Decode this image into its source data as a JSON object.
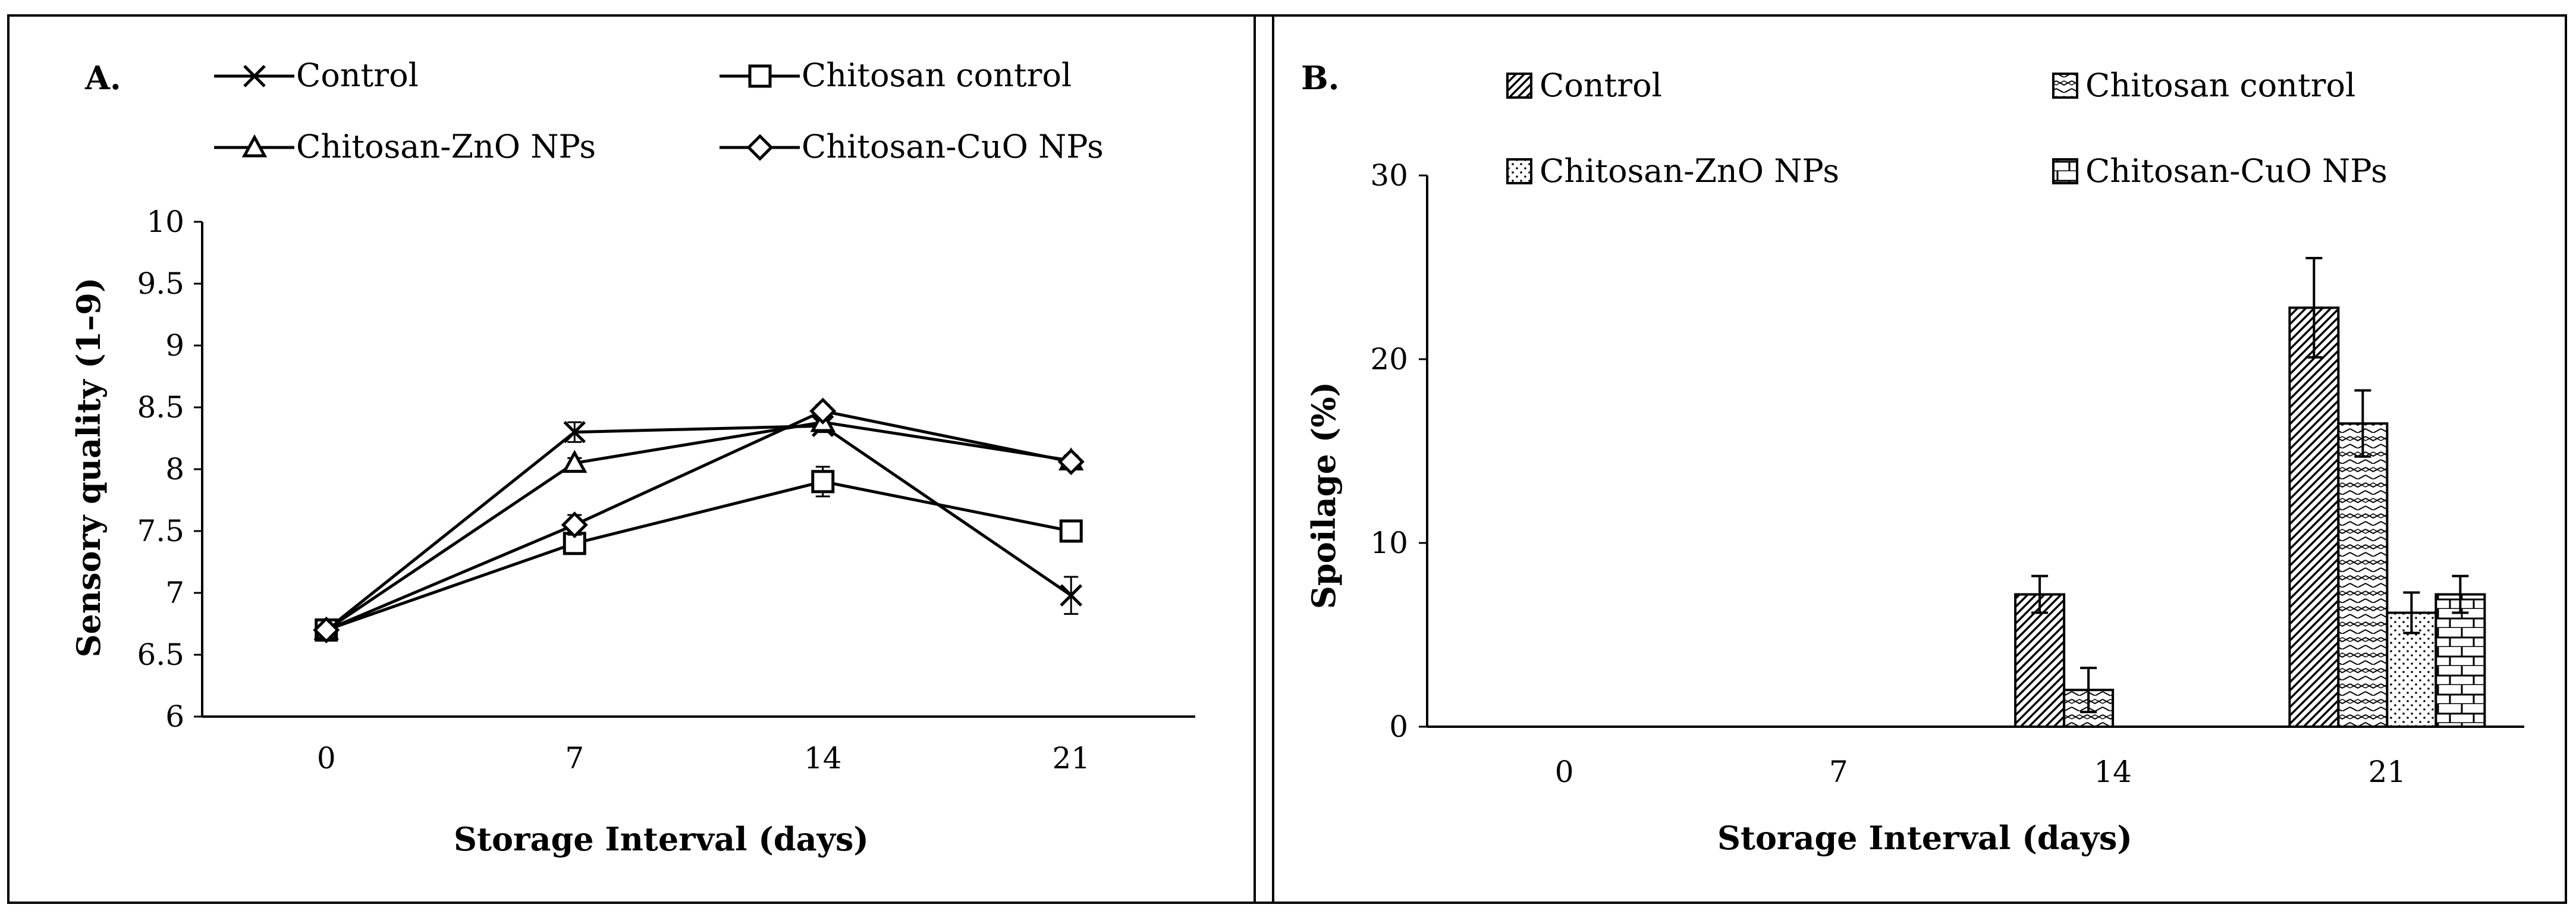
{
  "chart_data": [
    {
      "panel_label": "A.",
      "type": "line",
      "title": "",
      "xlabel": "Storage Interval (days)",
      "ylabel": "Sensory quality (1–9)",
      "categories": [
        "0",
        "7",
        "14",
        "21"
      ],
      "ylim": [
        6,
        10
      ],
      "yticks": [
        "6",
        "6.5",
        "7",
        "7.5",
        "8",
        "8.5",
        "9",
        "9.5",
        "10"
      ],
      "grid": false,
      "legend_position": "top",
      "series": [
        {
          "name": "Control",
          "marker": "x",
          "values": [
            6.7,
            8.3,
            8.35,
            6.98
          ],
          "errors": [
            0.03,
            0.08,
            0.05,
            0.15
          ]
        },
        {
          "name": "Chitosan control",
          "marker": "square",
          "values": [
            6.7,
            7.4,
            7.9,
            7.5
          ],
          "errors": [
            0.03,
            0.08,
            0.12,
            0.06
          ]
        },
        {
          "name": "Chitosan-ZnO NPs",
          "marker": "triangle",
          "values": [
            6.7,
            8.05,
            8.38,
            8.07
          ],
          "errors": [
            0.03,
            0.04,
            0.04,
            0.04
          ]
        },
        {
          "name": "Chitosan-CuO NPs",
          "marker": "diamond",
          "values": [
            6.7,
            7.55,
            8.47,
            8.06
          ],
          "errors": [
            0.03,
            0.08,
            0.05,
            0.05
          ]
        }
      ]
    },
    {
      "panel_label": "B.",
      "type": "bar",
      "title": "",
      "xlabel": "Storage Interval (days)",
      "ylabel": "Spoilage (%)",
      "categories": [
        "0",
        "7",
        "14",
        "21"
      ],
      "ylim": [
        0,
        30
      ],
      "yticks": [
        "0",
        "10",
        "20",
        "30"
      ],
      "grid": false,
      "legend_position": "top",
      "series": [
        {
          "name": "Control",
          "pattern": "diagonal",
          "values": [
            0,
            0,
            7.2,
            22.8
          ],
          "errors": [
            0,
            0,
            1.0,
            2.7
          ]
        },
        {
          "name": "Chitosan control",
          "pattern": "waves",
          "values": [
            0,
            0,
            2.0,
            16.5
          ],
          "errors": [
            0,
            0,
            1.2,
            1.8
          ]
        },
        {
          "name": "Chitosan-ZnO NPs",
          "pattern": "dots",
          "values": [
            0,
            0,
            0,
            6.2
          ],
          "errors": [
            0,
            0,
            0,
            1.1
          ]
        },
        {
          "name": "Chitosan-CuO NPs",
          "pattern": "bricks",
          "values": [
            0,
            0,
            0,
            7.2
          ],
          "errors": [
            0,
            0,
            0,
            1.0
          ]
        }
      ]
    }
  ]
}
